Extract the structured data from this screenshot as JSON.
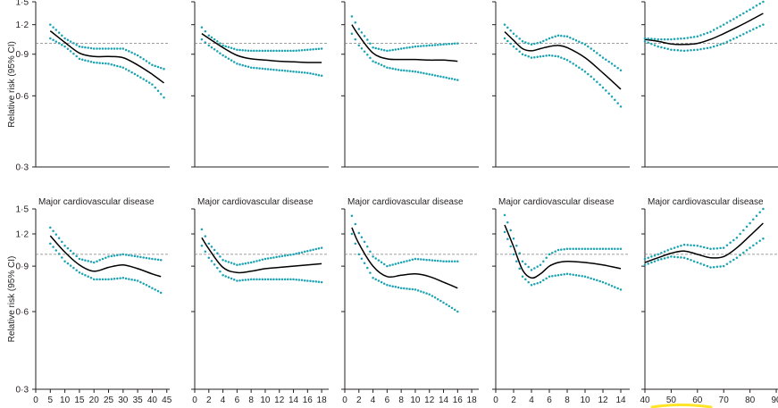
{
  "colors": {
    "estimate": "#000000",
    "ci": "#1ba3b3",
    "reference": "#7f7f7f",
    "axis": "#231f20",
    "highlight": "#ffe100"
  },
  "y_axis": {
    "label": "Relative risk (95% CI)",
    "ticks": [
      "0·3",
      "0·6",
      "0·9",
      "1·2",
      "1·5"
    ],
    "scale": "log",
    "reference": 1.0
  },
  "row_titles": [
    "",
    "Major cardiovascular disease"
  ],
  "columns": [
    {
      "ticks": [
        0,
        5,
        10,
        15,
        20,
        25,
        30,
        35,
        40,
        45
      ],
      "tick_labels": [
        "0",
        "5",
        "10",
        "15",
        "20",
        "25",
        "30",
        "35",
        "40",
        "45"
      ],
      "xlim": [
        0,
        46
      ]
    },
    {
      "ticks": [
        0,
        2,
        4,
        6,
        8,
        10,
        12,
        14,
        16,
        18
      ],
      "tick_labels": [
        "0",
        "2",
        "4",
        "6",
        "8",
        "10",
        "12",
        "14",
        "16",
        "18"
      ],
      "xlim": [
        0,
        19
      ]
    },
    {
      "ticks": [
        0,
        2,
        4,
        6,
        8,
        10,
        12,
        14,
        16,
        18
      ],
      "tick_labels": [
        "0",
        "2",
        "4",
        "6",
        "8",
        "10",
        "12",
        "14",
        "16",
        "18"
      ],
      "xlim": [
        0,
        19
      ]
    },
    {
      "ticks": [
        0,
        2,
        4,
        6,
        8,
        10,
        12,
        14
      ],
      "tick_labels": [
        "0",
        "2",
        "4",
        "6",
        "8",
        "10",
        "12",
        "14"
      ],
      "xlim": [
        0,
        15
      ]
    },
    {
      "ticks": [
        40,
        50,
        60,
        70,
        80,
        90
      ],
      "tick_labels": [
        "40",
        "50",
        "60",
        "70",
        "80",
        "90"
      ],
      "xlim": [
        40,
        91
      ]
    }
  ],
  "chart_data": [
    {
      "type": "line",
      "row": 0,
      "col": 0,
      "title": "",
      "ylim": [
        0.3,
        1.5
      ],
      "x": [
        5,
        10,
        15,
        20,
        25,
        30,
        35,
        40,
        44
      ],
      "series": [
        {
          "role": "estimate",
          "values": [
            1.13,
            1.01,
            0.91,
            0.88,
            0.88,
            0.87,
            0.81,
            0.74,
            0.68
          ]
        },
        {
          "role": "lower",
          "values": [
            1.05,
            0.97,
            0.86,
            0.83,
            0.82,
            0.79,
            0.73,
            0.67,
            0.59
          ]
        },
        {
          "role": "upper",
          "values": [
            1.2,
            1.05,
            0.97,
            0.95,
            0.95,
            0.95,
            0.89,
            0.81,
            0.78
          ]
        }
      ]
    },
    {
      "type": "line",
      "row": 0,
      "col": 1,
      "title": "",
      "ylim": [
        0.3,
        1.5
      ],
      "x": [
        1,
        2,
        4,
        6,
        8,
        10,
        12,
        14,
        16,
        18
      ],
      "series": [
        {
          "role": "estimate",
          "values": [
            1.1,
            1.05,
            0.96,
            0.89,
            0.86,
            0.85,
            0.84,
            0.835,
            0.83,
            0.83
          ]
        },
        {
          "role": "lower",
          "values": [
            1.04,
            0.98,
            0.89,
            0.82,
            0.79,
            0.78,
            0.77,
            0.76,
            0.75,
            0.73
          ]
        },
        {
          "role": "upper",
          "values": [
            1.17,
            1.08,
            0.98,
            0.94,
            0.93,
            0.93,
            0.93,
            0.93,
            0.94,
            0.95
          ]
        }
      ]
    },
    {
      "type": "line",
      "row": 0,
      "col": 2,
      "title": "",
      "ylim": [
        0.3,
        1.5
      ],
      "x": [
        1,
        2,
        4,
        6,
        8,
        10,
        12,
        14,
        16
      ],
      "series": [
        {
          "role": "estimate",
          "values": [
            1.2,
            1.08,
            0.91,
            0.86,
            0.855,
            0.855,
            0.85,
            0.85,
            0.84
          ]
        },
        {
          "role": "lower",
          "values": [
            1.1,
            0.98,
            0.84,
            0.79,
            0.77,
            0.76,
            0.74,
            0.72,
            0.7
          ]
        },
        {
          "role": "upper",
          "values": [
            1.3,
            1.15,
            0.96,
            0.93,
            0.95,
            0.97,
            0.98,
            0.99,
            1.0
          ]
        }
      ]
    },
    {
      "type": "line",
      "row": 0,
      "col": 3,
      "title": "",
      "ylim": [
        0.3,
        1.5
      ],
      "x": [
        1,
        2,
        3,
        4,
        5,
        6,
        7,
        8,
        10,
        12,
        14
      ],
      "series": [
        {
          "role": "estimate",
          "values": [
            1.12,
            1.03,
            0.95,
            0.93,
            0.95,
            0.97,
            0.98,
            0.96,
            0.87,
            0.75,
            0.64
          ]
        },
        {
          "role": "lower",
          "values": [
            1.05,
            0.97,
            0.9,
            0.87,
            0.88,
            0.89,
            0.88,
            0.85,
            0.76,
            0.65,
            0.54
          ]
        },
        {
          "role": "upper",
          "values": [
            1.2,
            1.1,
            1.02,
            0.99,
            1.01,
            1.05,
            1.08,
            1.07,
            0.99,
            0.87,
            0.77
          ]
        }
      ]
    },
    {
      "type": "line",
      "row": 0,
      "col": 4,
      "title": "",
      "ylim": [
        0.3,
        1.5
      ],
      "x": [
        40,
        45,
        50,
        55,
        60,
        65,
        70,
        75,
        80,
        85
      ],
      "series": [
        {
          "role": "estimate",
          "values": [
            1.04,
            1.02,
            0.995,
            0.99,
            1.0,
            1.04,
            1.1,
            1.17,
            1.25,
            1.34
          ]
        },
        {
          "role": "lower",
          "values": [
            1.02,
            0.97,
            0.94,
            0.93,
            0.94,
            0.96,
            1.0,
            1.06,
            1.13,
            1.2
          ]
        },
        {
          "role": "upper",
          "values": [
            1.05,
            1.04,
            1.04,
            1.05,
            1.07,
            1.12,
            1.2,
            1.29,
            1.39,
            1.5
          ]
        }
      ]
    },
    {
      "type": "line",
      "row": 1,
      "col": 0,
      "title": "Major cardiovascular disease",
      "ylim": [
        0.3,
        1.5
      ],
      "x": [
        5,
        10,
        15,
        20,
        25,
        30,
        35,
        40,
        43
      ],
      "series": [
        {
          "role": "estimate",
          "values": [
            1.18,
            1.02,
            0.91,
            0.86,
            0.89,
            0.91,
            0.88,
            0.84,
            0.82
          ]
        },
        {
          "role": "lower",
          "values": [
            1.1,
            0.94,
            0.85,
            0.8,
            0.8,
            0.81,
            0.79,
            0.74,
            0.71
          ]
        },
        {
          "role": "upper",
          "values": [
            1.27,
            1.08,
            0.96,
            0.93,
            0.98,
            1.0,
            0.98,
            0.96,
            0.95
          ]
        }
      ]
    },
    {
      "type": "line",
      "row": 1,
      "col": 1,
      "title": "Major cardiovascular disease",
      "ylim": [
        0.3,
        1.5
      ],
      "x": [
        1,
        2,
        4,
        6,
        8,
        10,
        12,
        14,
        16,
        18
      ],
      "series": [
        {
          "role": "estimate",
          "values": [
            1.16,
            1.05,
            0.89,
            0.85,
            0.86,
            0.88,
            0.89,
            0.9,
            0.91,
            0.92
          ]
        },
        {
          "role": "lower",
          "values": [
            1.08,
            0.97,
            0.83,
            0.79,
            0.8,
            0.8,
            0.8,
            0.8,
            0.79,
            0.78
          ]
        },
        {
          "role": "upper",
          "values": [
            1.25,
            1.1,
            0.95,
            0.91,
            0.93,
            0.96,
            0.98,
            1.0,
            1.03,
            1.06
          ]
        }
      ]
    },
    {
      "type": "line",
      "row": 1,
      "col": 2,
      "title": "Major cardiovascular disease",
      "ylim": [
        0.3,
        1.5
      ],
      "x": [
        1,
        2,
        4,
        6,
        8,
        10,
        12,
        14,
        16
      ],
      "series": [
        {
          "role": "estimate",
          "values": [
            1.27,
            1.1,
            0.9,
            0.82,
            0.83,
            0.84,
            0.82,
            0.78,
            0.74
          ]
        },
        {
          "role": "lower",
          "values": [
            1.2,
            1.0,
            0.81,
            0.76,
            0.74,
            0.73,
            0.7,
            0.65,
            0.6
          ]
        },
        {
          "role": "upper",
          "values": [
            1.41,
            1.21,
            0.98,
            0.9,
            0.93,
            0.96,
            0.95,
            0.94,
            0.94
          ]
        }
      ]
    },
    {
      "type": "line",
      "row": 1,
      "col": 3,
      "title": "Major cardiovascular disease",
      "ylim": [
        0.3,
        1.5
      ],
      "x": [
        1,
        2,
        3,
        4,
        5,
        6,
        7,
        8,
        10,
        12,
        14
      ],
      "series": [
        {
          "role": "estimate",
          "values": [
            1.3,
            1.07,
            0.87,
            0.81,
            0.84,
            0.9,
            0.93,
            0.94,
            0.93,
            0.91,
            0.88
          ]
        },
        {
          "role": "lower",
          "values": [
            1.22,
            1.0,
            0.82,
            0.76,
            0.78,
            0.82,
            0.83,
            0.84,
            0.82,
            0.78,
            0.73
          ]
        },
        {
          "role": "upper",
          "values": [
            1.42,
            1.15,
            0.94,
            0.87,
            0.91,
            1.0,
            1.04,
            1.05,
            1.05,
            1.05,
            1.05
          ]
        }
      ]
    },
    {
      "type": "line",
      "row": 1,
      "col": 4,
      "title": "Major cardiovascular disease",
      "ylim": [
        0.3,
        1.5
      ],
      "x": [
        40,
        45,
        50,
        55,
        60,
        65,
        70,
        75,
        80,
        85
      ],
      "series": [
        {
          "role": "estimate",
          "values": [
            0.93,
            0.97,
            1.01,
            1.03,
            1.0,
            0.97,
            0.98,
            1.06,
            1.18,
            1.32
          ]
        },
        {
          "role": "lower",
          "values": [
            0.91,
            0.95,
            0.98,
            0.97,
            0.93,
            0.89,
            0.9,
            0.97,
            1.06,
            1.15
          ]
        },
        {
          "role": "upper",
          "values": [
            0.96,
            1.0,
            1.05,
            1.09,
            1.08,
            1.05,
            1.06,
            1.16,
            1.32,
            1.5
          ]
        }
      ]
    }
  ]
}
